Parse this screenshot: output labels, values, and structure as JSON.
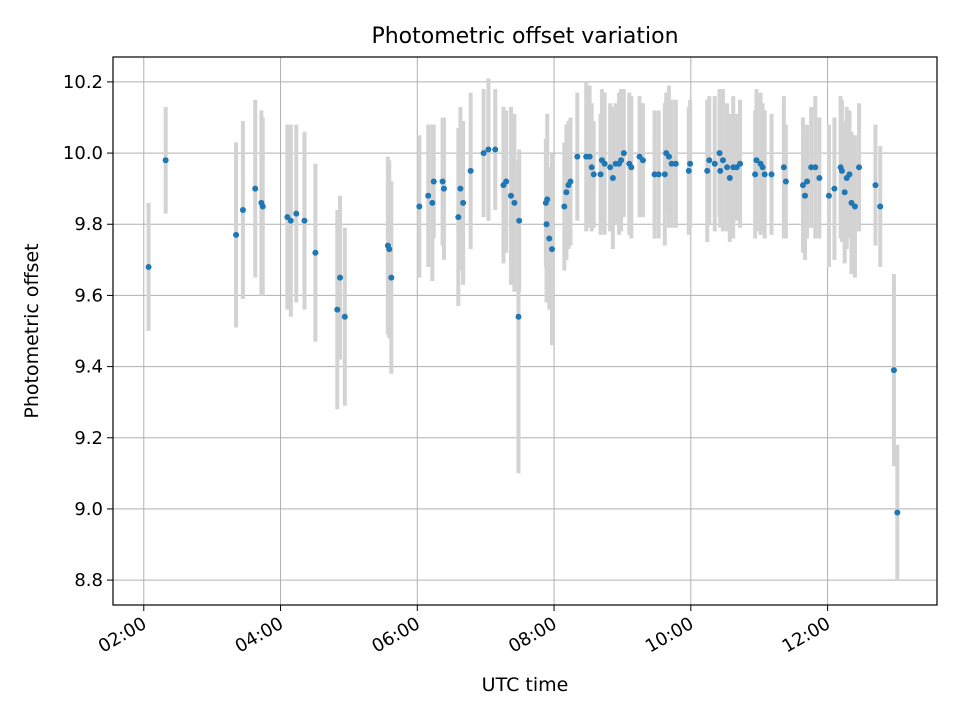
{
  "chart_data": {
    "type": "scatter",
    "title": "Photometric offset variation",
    "xlabel": "UTC time",
    "ylabel": "Photometric offset",
    "x_unit": "hours UTC",
    "xlim": [
      1.55,
      13.6
    ],
    "ylim": [
      8.73,
      10.27
    ],
    "x_ticks": [
      {
        "value": 2,
        "label": "02:00"
      },
      {
        "value": 4,
        "label": "04:00"
      },
      {
        "value": 6,
        "label": "06:00"
      },
      {
        "value": 8,
        "label": "08:00"
      },
      {
        "value": 10,
        "label": "10:00"
      },
      {
        "value": 12,
        "label": "12:00"
      }
    ],
    "y_ticks": [
      {
        "value": 8.8,
        "label": "8.8"
      },
      {
        "value": 9.0,
        "label": "9.0"
      },
      {
        "value": 9.2,
        "label": "9.2"
      },
      {
        "value": 9.4,
        "label": "9.4"
      },
      {
        "value": 9.6,
        "label": "9.6"
      },
      {
        "value": 9.8,
        "label": "9.8"
      },
      {
        "value": 10.0,
        "label": "10.0"
      },
      {
        "value": 10.2,
        "label": "10.2"
      }
    ],
    "grid": true,
    "colors": {
      "marker": "#1f77b4",
      "errorbar": "#d3d3d3",
      "grid": "#b0b0b0"
    },
    "series": [
      {
        "points": [
          [
            2.07,
            9.68,
            0.18
          ],
          [
            2.32,
            9.98,
            0.15
          ],
          [
            3.35,
            9.77,
            0.26
          ],
          [
            3.45,
            9.84,
            0.25
          ],
          [
            3.63,
            9.9,
            0.25
          ],
          [
            3.72,
            9.86,
            0.26
          ],
          [
            3.74,
            9.85,
            0.25
          ],
          [
            4.1,
            9.82,
            0.26
          ],
          [
            4.15,
            9.81,
            0.27
          ],
          [
            4.23,
            9.83,
            0.25
          ],
          [
            4.35,
            9.81,
            0.25
          ],
          [
            4.51,
            9.72,
            0.25
          ],
          [
            4.83,
            9.56,
            0.28
          ],
          [
            4.87,
            9.65,
            0.23
          ],
          [
            4.94,
            9.54,
            0.25
          ],
          [
            5.57,
            9.74,
            0.25
          ],
          [
            5.59,
            9.73,
            0.25
          ],
          [
            5.62,
            9.65,
            0.27
          ],
          [
            6.03,
            9.85,
            0.2
          ],
          [
            6.16,
            9.88,
            0.2
          ],
          [
            6.22,
            9.86,
            0.22
          ],
          [
            6.24,
            9.92,
            0.16
          ],
          [
            6.37,
            9.92,
            0.18
          ],
          [
            6.39,
            9.9,
            0.2
          ],
          [
            6.6,
            9.82,
            0.25
          ],
          [
            6.63,
            9.9,
            0.23
          ],
          [
            6.67,
            9.86,
            0.23
          ],
          [
            6.78,
            9.95,
            0.22
          ],
          [
            6.97,
            10.0,
            0.18
          ],
          [
            7.04,
            10.01,
            0.2
          ],
          [
            7.14,
            10.01,
            0.17
          ],
          [
            7.26,
            9.91,
            0.22
          ],
          [
            7.3,
            9.92,
            0.2
          ],
          [
            7.37,
            9.88,
            0.25
          ],
          [
            7.42,
            9.86,
            0.25
          ],
          [
            7.48,
            9.54,
            0.44
          ],
          [
            7.49,
            9.81,
            0.2
          ],
          [
            7.88,
            9.86,
            0.18
          ],
          [
            7.89,
            9.8,
            0.22
          ],
          [
            7.9,
            9.87,
            0.24
          ],
          [
            7.93,
            9.76,
            0.2
          ],
          [
            7.97,
            9.73,
            0.27
          ],
          [
            8.15,
            9.85,
            0.18
          ],
          [
            8.18,
            9.89,
            0.19
          ],
          [
            8.21,
            9.91,
            0.18
          ],
          [
            8.24,
            9.92,
            0.18
          ],
          [
            8.34,
            9.99,
            0.18
          ],
          [
            8.47,
            9.99,
            0.21
          ],
          [
            8.52,
            9.99,
            0.2
          ],
          [
            8.55,
            9.96,
            0.18
          ],
          [
            8.58,
            9.94,
            0.15
          ],
          [
            8.68,
            9.94,
            0.17
          ],
          [
            8.7,
            9.98,
            0.2
          ],
          [
            8.74,
            9.97,
            0.2
          ],
          [
            8.82,
            9.96,
            0.18
          ],
          [
            8.86,
            9.93,
            0.2
          ],
          [
            8.9,
            9.97,
            0.17
          ],
          [
            8.95,
            9.97,
            0.2
          ],
          [
            8.98,
            9.98,
            0.2
          ],
          [
            9.02,
            10.0,
            0.18
          ],
          [
            9.1,
            9.97,
            0.2
          ],
          [
            9.13,
            9.96,
            0.2
          ],
          [
            9.25,
            9.99,
            0.17
          ],
          [
            9.3,
            9.98,
            0.16
          ],
          [
            9.47,
            9.94,
            0.18
          ],
          [
            9.53,
            9.94,
            0.18
          ],
          [
            9.62,
            9.94,
            0.2
          ],
          [
            9.64,
            10.0,
            0.17
          ],
          [
            9.68,
            9.99,
            0.2
          ],
          [
            9.72,
            9.97,
            0.18
          ],
          [
            9.78,
            9.97,
            0.18
          ],
          [
            9.97,
            9.95,
            0.18
          ],
          [
            9.99,
            9.97,
            0.18
          ],
          [
            10.24,
            9.95,
            0.2
          ],
          [
            10.27,
            9.98,
            0.18
          ],
          [
            10.35,
            9.97,
            0.19
          ],
          [
            10.42,
            10.0,
            0.18
          ],
          [
            10.43,
            9.95,
            0.16
          ],
          [
            10.47,
            9.98,
            0.2
          ],
          [
            10.53,
            9.96,
            0.18
          ],
          [
            10.57,
            9.93,
            0.18
          ],
          [
            10.62,
            9.96,
            0.2
          ],
          [
            10.67,
            9.96,
            0.15
          ],
          [
            10.72,
            9.97,
            0.18
          ],
          [
            10.94,
            9.94,
            0.18
          ],
          [
            10.96,
            9.98,
            0.2
          ],
          [
            11.02,
            9.97,
            0.2
          ],
          [
            11.05,
            9.96,
            0.18
          ],
          [
            11.08,
            9.94,
            0.18
          ],
          [
            11.18,
            9.94,
            0.17
          ],
          [
            11.36,
            9.96,
            0.2
          ],
          [
            11.39,
            9.92,
            0.16
          ],
          [
            11.64,
            9.91,
            0.19
          ],
          [
            11.67,
            9.88,
            0.18
          ],
          [
            11.7,
            9.92,
            0.16
          ],
          [
            11.76,
            9.96,
            0.17
          ],
          [
            11.82,
            9.96,
            0.2
          ],
          [
            11.88,
            9.93,
            0.17
          ],
          [
            12.02,
            9.88,
            0.2
          ],
          [
            12.1,
            9.9,
            0.2
          ],
          [
            12.19,
            9.96,
            0.2
          ],
          [
            12.21,
            9.95,
            0.2
          ],
          [
            12.25,
            9.89,
            0.2
          ],
          [
            12.28,
            9.93,
            0.2
          ],
          [
            12.32,
            9.94,
            0.18
          ],
          [
            12.35,
            9.86,
            0.2
          ],
          [
            12.4,
            9.85,
            0.2
          ],
          [
            12.46,
            9.96,
            0.18
          ],
          [
            12.7,
            9.91,
            0.17
          ],
          [
            12.77,
            9.85,
            0.17
          ],
          [
            12.97,
            9.39,
            0.27
          ],
          [
            13.02,
            8.99,
            0.19
          ]
        ]
      }
    ]
  }
}
